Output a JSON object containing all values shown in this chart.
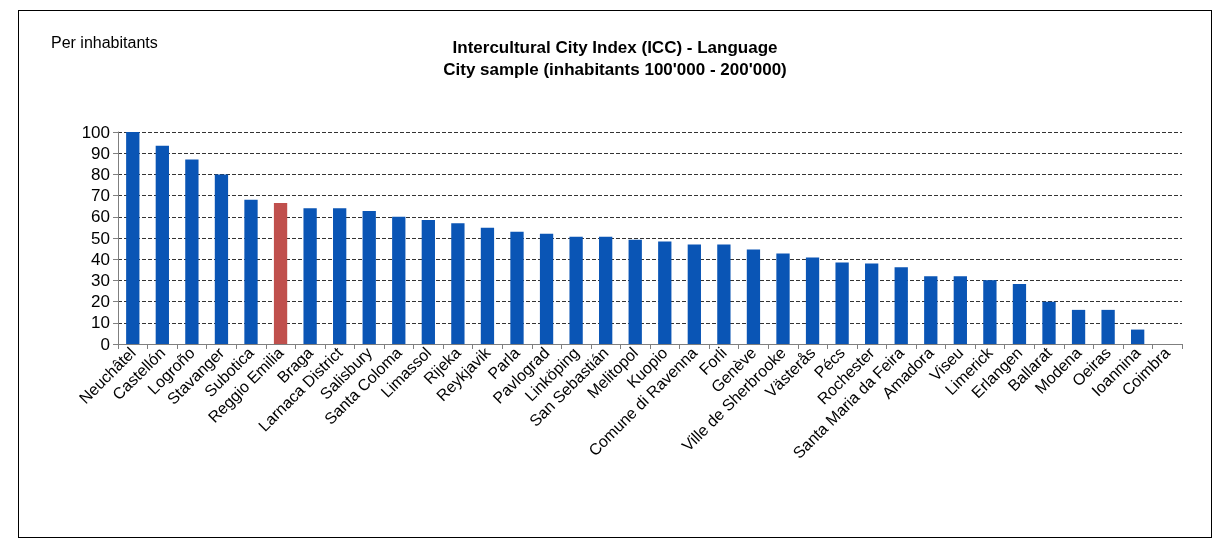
{
  "chart_data": {
    "type": "bar",
    "title": "Intercultural City Index (ICC) - Language\nCity sample (inhabitants 100'000 - 200'000)",
    "ylabel": "Per inhabitants",
    "categories": [
      "Neuchâtel",
      "Castellón",
      "Logroño",
      "Stavanger",
      "Subotica",
      "Reggio Emilia",
      "Braga",
      "Larnaca District",
      "Salisbury",
      "Santa Coloma",
      "Limassol",
      "Rijeka",
      "Reykjavik",
      "Parla",
      "Pavlograd",
      "Linköping",
      "San Sebastián",
      "Melitopol",
      "Kuopio",
      "Comune di Ravenna",
      "Forli",
      "Genève",
      "Ville de Sherbrooke",
      "Västerås",
      "Pécs",
      "Rochester",
      "Santa Maria da Feira",
      "Amadora",
      "Viseu",
      "Limerick",
      "Erlangen",
      "Ballarat",
      "Modena",
      "Oeiras",
      "Ioannina",
      "Coimbra"
    ],
    "values": [
      100,
      93.5,
      87,
      80,
      68,
      66.5,
      64,
      64,
      62.7,
      60,
      58.5,
      57,
      54.8,
      53,
      52,
      50.6,
      50.6,
      49.2,
      48.3,
      46.9,
      46.9,
      44.6,
      42.7,
      40.8,
      38.5,
      38,
      36.2,
      32,
      32,
      30.1,
      28.3,
      19.9,
      16.1,
      16.1,
      6.8,
      0
    ],
    "colors": [
      "#0a55b5",
      "#0a55b5",
      "#0a55b5",
      "#0a55b5",
      "#0a55b5",
      "#c0504d",
      "#0a55b5",
      "#0a55b5",
      "#0a55b5",
      "#0a55b5",
      "#0a55b5",
      "#0a55b5",
      "#0a55b5",
      "#0a55b5",
      "#0a55b5",
      "#0a55b5",
      "#0a55b5",
      "#0a55b5",
      "#0a55b5",
      "#0a55b5",
      "#0a55b5",
      "#0a55b5",
      "#0a55b5",
      "#0a55b5",
      "#0a55b5",
      "#0a55b5",
      "#0a55b5",
      "#0a55b5",
      "#0a55b5",
      "#0a55b5",
      "#0a55b5",
      "#0a55b5",
      "#0a55b5",
      "#0a55b5",
      "#0a55b5",
      "#0a55b5"
    ],
    "ylim": [
      0,
      100
    ],
    "yticks": [
      0,
      10,
      20,
      30,
      40,
      50,
      60,
      70,
      80,
      90,
      100
    ],
    "grid": "y"
  }
}
